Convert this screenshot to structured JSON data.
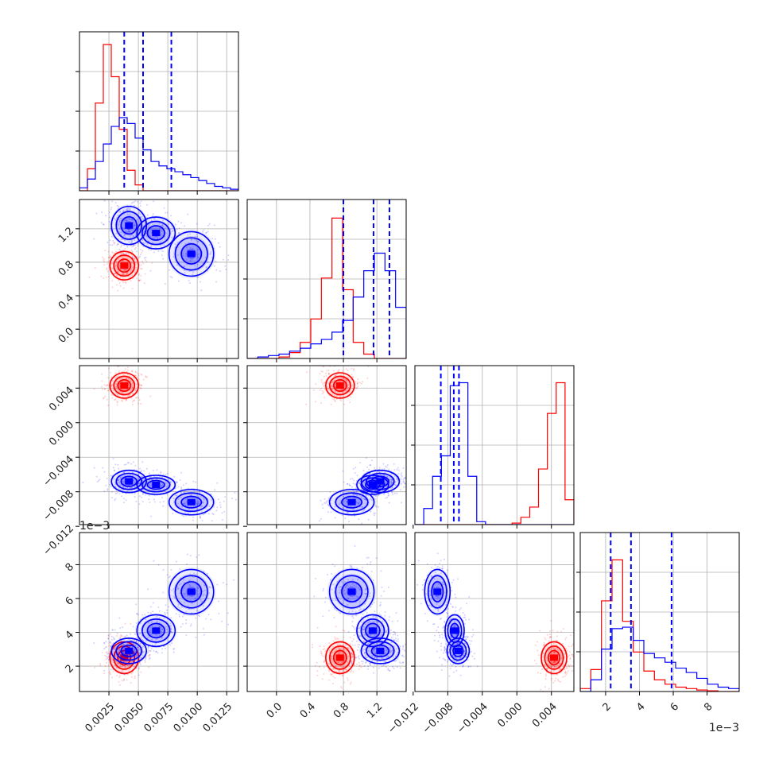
{
  "chart_data": {
    "type": "corner",
    "grid": true,
    "colors": {
      "series_a": "#0000ff",
      "series_b": "#ff0000"
    },
    "parameters": [
      {
        "range": [
          0.0,
          0.0135
        ],
        "ticks": [
          0.0025,
          0.005,
          0.0075,
          0.01,
          0.0125
        ],
        "tick_labels": [
          "0.0025",
          "0.0050",
          "0.0075",
          "0.0100",
          "0.0125"
        ],
        "offset_label": "",
        "quantiles": [
          0.0038,
          0.0054,
          0.0078
        ],
        "hist_a": [
          0.02,
          0.08,
          0.2,
          0.32,
          0.44,
          0.5,
          0.46,
          0.36,
          0.28,
          0.2,
          0.17,
          0.15,
          0.13,
          0.11,
          0.09,
          0.07,
          0.05,
          0.03,
          0.02,
          0.01
        ],
        "hist_b": [
          0.0,
          0.15,
          0.6,
          1.0,
          0.78,
          0.42,
          0.14,
          0.04,
          0.0,
          0.0,
          0.0,
          0.0,
          0.0,
          0.0,
          0.0,
          0.0,
          0.0,
          0.0,
          0.0,
          0.0
        ]
      },
      {
        "range": [
          -0.35,
          1.55
        ],
        "ticks": [
          0.0,
          0.4,
          0.8,
          1.2
        ],
        "tick_labels": [
          "0.0",
          "0.4",
          "0.8",
          "1.2"
        ],
        "offset_label": "",
        "quantiles": [
          0.8,
          1.16,
          1.35
        ],
        "hist_a": [
          0.0,
          0.01,
          0.02,
          0.03,
          0.05,
          0.07,
          0.1,
          0.13,
          0.18,
          0.26,
          0.42,
          0.6,
          0.72,
          0.6,
          0.35
        ],
        "hist_b": [
          0.0,
          0.0,
          0.0,
          0.01,
          0.04,
          0.11,
          0.27,
          0.55,
          0.96,
          0.47,
          0.11,
          0.03,
          0.0,
          0.0,
          0.0
        ]
      },
      {
        "range": [
          -0.0118,
          0.0066
        ],
        "ticks": [
          -0.012,
          -0.008,
          -0.004,
          0.0,
          0.004
        ],
        "tick_labels": [
          "−0.012",
          "−0.008",
          "−0.004",
          "0.000",
          "0.004"
        ],
        "offset_label": "",
        "quantiles": [
          -0.0088,
          -0.0073,
          -0.0067
        ],
        "hist_a": [
          0.0,
          0.11,
          0.33,
          0.47,
          0.95,
          0.97,
          0.33,
          0.02,
          0.0,
          0.0,
          0.0,
          0.0,
          0.0,
          0.0,
          0.0,
          0.0,
          0.0,
          0.0
        ],
        "hist_b": [
          0.0,
          0.0,
          0.0,
          0.0,
          0.0,
          0.0,
          0.0,
          0.0,
          0.0,
          0.0,
          0.0,
          0.01,
          0.05,
          0.12,
          0.38,
          0.76,
          0.97,
          0.17
        ]
      },
      {
        "range": [
          0.0005,
          0.0099
        ],
        "ticks": [
          0.002,
          0.004,
          0.006,
          0.008
        ],
        "tick_labels": [
          "2",
          "4",
          "6",
          "8"
        ],
        "offset_label": "1e−3",
        "quantiles": [
          0.0023,
          0.0035,
          0.0059
        ],
        "hist_a": [
          0.0,
          0.08,
          0.29,
          0.43,
          0.44,
          0.35,
          0.26,
          0.23,
          0.2,
          0.16,
          0.13,
          0.09,
          0.05,
          0.03,
          0.02
        ],
        "hist_b": [
          0.02,
          0.15,
          0.62,
          0.9,
          0.48,
          0.27,
          0.14,
          0.08,
          0.05,
          0.03,
          0.02,
          0.01,
          0.005,
          0.0,
          0.0
        ]
      }
    ],
    "blobs": {
      "a": [
        {
          "center": [
            0.0042,
            1.24,
            -0.0068,
            0.0029
          ]
        },
        {
          "center": [
            0.0065,
            1.15,
            -0.0072,
            0.0041
          ]
        },
        {
          "center": [
            0.0095,
            0.9,
            -0.0092,
            0.0064
          ]
        }
      ],
      "b": [
        {
          "center": [
            0.0038,
            0.76,
            0.0043,
            0.0025
          ]
        }
      ]
    }
  }
}
